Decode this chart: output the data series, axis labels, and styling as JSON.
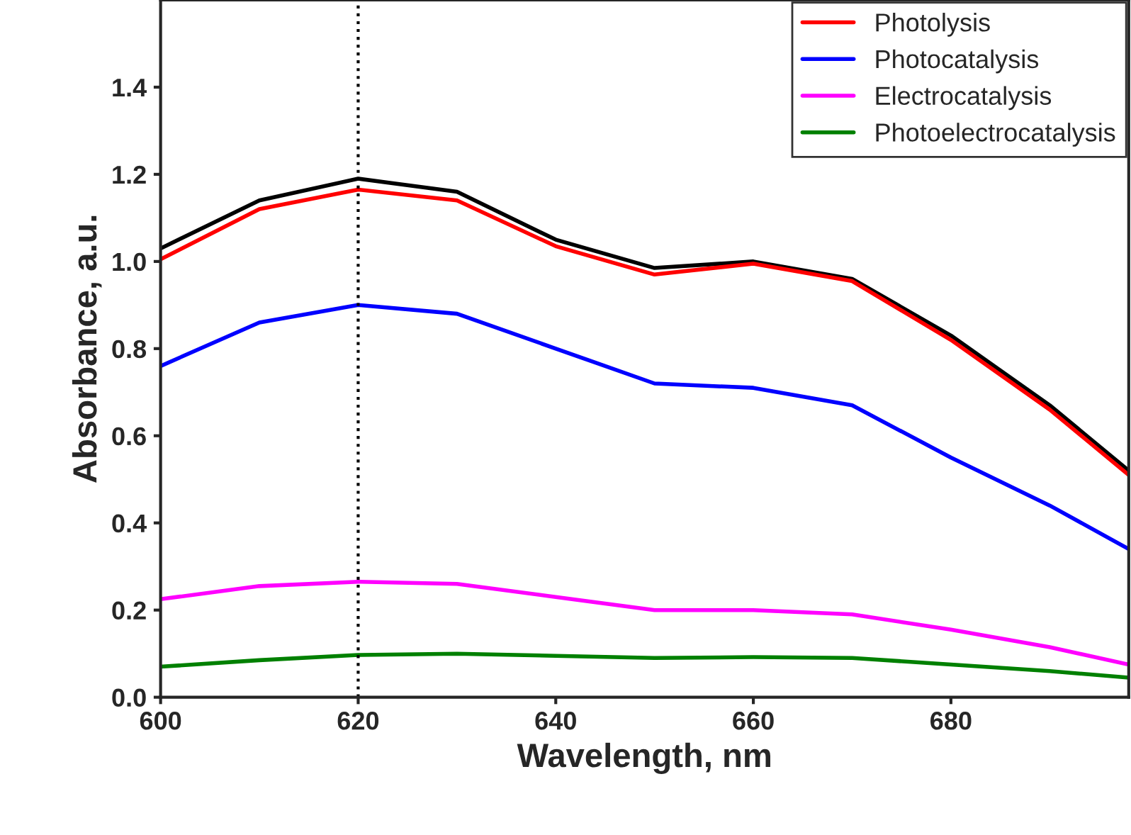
{
  "chart_data": {
    "type": "line",
    "xlabel": "Wavelength, nm",
    "ylabel": "Absorbance, a.u.",
    "x": [
      600,
      610,
      620,
      630,
      640,
      650,
      660,
      670,
      680,
      690,
      698
    ],
    "series": [
      {
        "color": "#000000",
        "values": [
          1.03,
          1.14,
          1.19,
          1.16,
          1.05,
          0.985,
          1.0,
          0.96,
          0.83,
          0.67,
          0.52
        ]
      },
      {
        "name": "Photolysis",
        "color": "#ff0000",
        "values": [
          1.005,
          1.12,
          1.165,
          1.14,
          1.035,
          0.97,
          0.995,
          0.955,
          0.82,
          0.66,
          0.51
        ]
      },
      {
        "name": "Photocatalysis",
        "color": "#0000ff",
        "values": [
          0.76,
          0.86,
          0.9,
          0.88,
          0.8,
          0.72,
          0.71,
          0.67,
          0.55,
          0.44,
          0.34
        ]
      },
      {
        "name": "Electrocatalysis",
        "color": "#ff00ff",
        "values": [
          0.225,
          0.255,
          0.265,
          0.26,
          0.23,
          0.2,
          0.2,
          0.19,
          0.155,
          0.115,
          0.075
        ]
      },
      {
        "name": "Photoelectrocatalysis",
        "color": "#008000",
        "values": [
          0.07,
          0.085,
          0.097,
          0.1,
          0.095,
          0.09,
          0.092,
          0.09,
          0.075,
          0.06,
          0.045
        ]
      }
    ],
    "xlim": [
      600,
      698
    ],
    "xticks": [
      600,
      620,
      640,
      660,
      680
    ],
    "ylim": [
      0,
      1.6
    ],
    "yticks": [
      {
        "value": 0,
        "label": "0.0"
      },
      {
        "value": 0.2,
        "label": "0.2"
      },
      {
        "value": 0.4,
        "label": "0.4"
      },
      {
        "value": 0.6,
        "label": "0.6"
      },
      {
        "value": 0.8,
        "label": "0.8"
      },
      {
        "value": 1.0,
        "label": "1.0"
      },
      {
        "value": 1.2,
        "label": "1.2"
      },
      {
        "value": 1.4,
        "label": "1.4"
      }
    ],
    "ref_lines": [
      {
        "axis": "x",
        "value": 620,
        "color": "#000000",
        "line_style": "dotted"
      }
    ],
    "legend": "top right",
    "grid": false
  }
}
